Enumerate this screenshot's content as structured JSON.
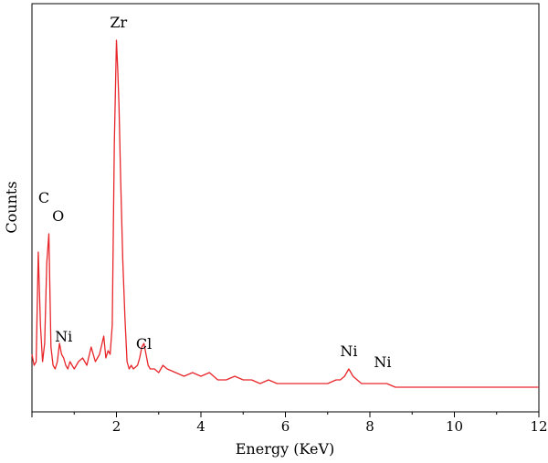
{
  "chart_data": {
    "type": "line",
    "title": "",
    "xlabel": "Energy (KeV)",
    "ylabel": "Counts",
    "xlim": [
      0,
      12
    ],
    "ylim": [
      0,
      100
    ],
    "y_ticks_shown": false,
    "x_ticks": [
      2,
      4,
      6,
      8,
      10,
      12
    ],
    "x_tick_labels": [
      "2",
      "4",
      "6",
      "8",
      "10",
      "12"
    ],
    "line_color": "#e8262a",
    "series": [
      {
        "x": [
          0.0,
          0.05,
          0.1,
          0.15,
          0.2,
          0.25,
          0.3,
          0.35,
          0.4,
          0.45,
          0.5,
          0.55,
          0.6,
          0.65,
          0.7,
          0.75,
          0.8,
          0.85,
          0.9,
          0.95,
          1.0,
          1.1,
          1.2,
          1.3,
          1.4,
          1.5,
          1.6,
          1.7,
          1.75,
          1.8,
          1.85,
          1.9,
          1.95,
          2.0,
          2.03,
          2.06,
          2.1,
          2.15,
          2.2,
          2.25,
          2.3,
          2.35,
          2.4,
          2.5,
          2.55,
          2.6,
          2.65,
          2.7,
          2.75,
          2.8,
          2.9,
          3.0,
          3.1,
          3.2,
          3.4,
          3.6,
          3.8,
          4.0,
          4.2,
          4.4,
          4.6,
          4.8,
          5.0,
          5.2,
          5.4,
          5.6,
          5.8,
          6.0,
          6.2,
          6.4,
          6.6,
          6.8,
          7.0,
          7.2,
          7.3,
          7.4,
          7.5,
          7.6,
          7.7,
          7.8,
          8.0,
          8.2,
          8.4,
          8.6,
          8.8,
          9.0,
          9.2,
          9.4,
          9.6,
          9.8,
          10.0,
          10.2,
          10.4,
          10.6,
          10.8,
          11.0,
          11.2,
          11.4,
          11.6,
          11.8,
          12.0
        ],
        "y": [
          12,
          9,
          10,
          40,
          20,
          10,
          15,
          37,
          45,
          14,
          9,
          8,
          10,
          15,
          12,
          11,
          9,
          8,
          10,
          9,
          8,
          10,
          11,
          9,
          14,
          10,
          12,
          17,
          11,
          13,
          12,
          20,
          70,
          98,
          90,
          80,
          60,
          38,
          22,
          10,
          8,
          9,
          8,
          9,
          11,
          14,
          15,
          12,
          9,
          8,
          8,
          7,
          9,
          8,
          7,
          6,
          7,
          6,
          7,
          5,
          5,
          6,
          5,
          5,
          4,
          5,
          4,
          4,
          4,
          4,
          4,
          4,
          4,
          5,
          5,
          6,
          8,
          6,
          5,
          4,
          4,
          4,
          4,
          3,
          3,
          3,
          3,
          3,
          3,
          3,
          3,
          3,
          3,
          3,
          3,
          3,
          3,
          3,
          3,
          3,
          3
        ]
      }
    ],
    "annotations": [
      {
        "text": "Zr",
        "x": 2.05,
        "y": 100
      },
      {
        "text": "C",
        "x": 0.28,
        "y": 52
      },
      {
        "text": "O",
        "x": 0.62,
        "y": 47
      },
      {
        "text": "Ni",
        "x": 0.75,
        "y": 14
      },
      {
        "text": "Cl",
        "x": 2.65,
        "y": 12
      },
      {
        "text": "Ni",
        "x": 7.5,
        "y": 10
      },
      {
        "text": "Ni",
        "x": 8.3,
        "y": 7
      }
    ]
  }
}
